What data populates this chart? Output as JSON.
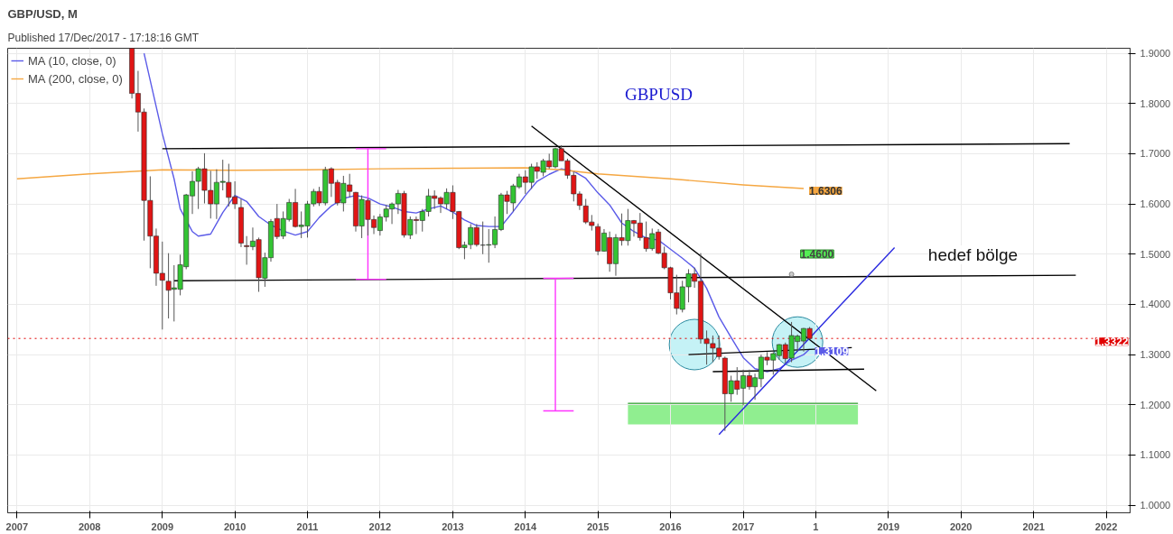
{
  "chart_data": {
    "type": "candlestick",
    "title": "GBP/USD, M",
    "annotations": [
      "Published 17/Dec/2017 - 17:18:16 GMT",
      "GBPUSD",
      {
        "text": "1.4600",
        "x": "2017-09",
        "y": 1.46
      },
      "hedef bölge"
    ],
    "x": [
      "2008-08",
      "2008-09",
      "2008-10",
      "2008-11",
      "2008-12",
      "2009-01",
      "2009-02",
      "2009-03",
      "2009-04",
      "2009-05",
      "2009-06",
      "2009-07",
      "2009-08",
      "2009-09",
      "2009-10",
      "2009-11",
      "2009-12",
      "2010-01",
      "2010-02",
      "2010-03",
      "2010-04",
      "2010-05",
      "2010-06",
      "2010-07",
      "2010-08",
      "2010-09",
      "2010-10",
      "2010-11",
      "2010-12",
      "2011-01",
      "2011-02",
      "2011-03",
      "2011-04",
      "2011-05",
      "2011-06",
      "2011-07",
      "2011-08",
      "2011-09",
      "2011-10",
      "2011-11",
      "2011-12",
      "2012-01",
      "2012-02",
      "2012-03",
      "2012-04",
      "2012-05",
      "2012-06",
      "2012-07",
      "2012-08",
      "2012-09",
      "2012-10",
      "2012-11",
      "2012-12",
      "2013-01",
      "2013-02",
      "2013-03",
      "2013-04",
      "2013-05",
      "2013-06",
      "2013-07",
      "2013-08",
      "2013-09",
      "2013-10",
      "2013-11",
      "2013-12",
      "2014-01",
      "2014-02",
      "2014-03",
      "2014-04",
      "2014-05",
      "2014-06",
      "2014-07",
      "2014-08",
      "2014-09",
      "2014-10",
      "2014-11",
      "2014-12",
      "2015-01",
      "2015-02",
      "2015-03",
      "2015-04",
      "2015-05",
      "2015-06",
      "2015-07",
      "2015-08",
      "2015-09",
      "2015-10",
      "2015-11",
      "2015-12",
      "2016-01",
      "2016-02",
      "2016-03",
      "2016-04",
      "2016-05",
      "2016-06",
      "2016-07",
      "2016-08",
      "2016-09",
      "2016-10",
      "2016-11",
      "2016-12",
      "2017-01",
      "2017-02",
      "2017-03",
      "2017-04",
      "2017-05",
      "2017-06",
      "2017-07",
      "2017-08",
      "2017-09",
      "2017-10",
      "2017-11",
      "2017-12"
    ],
    "ohlc": [
      [
        1.91,
        1.91,
        1.81,
        1.82
      ],
      [
        1.82,
        1.865,
        1.744,
        1.783
      ],
      [
        1.783,
        1.79,
        1.527,
        1.607
      ],
      [
        1.607,
        1.655,
        1.472,
        1.536
      ],
      [
        1.536,
        1.551,
        1.437,
        1.462
      ],
      [
        1.462,
        1.525,
        1.35,
        1.448
      ],
      [
        1.446,
        1.502,
        1.372,
        1.428
      ],
      [
        1.43,
        1.478,
        1.366,
        1.433
      ],
      [
        1.43,
        1.499,
        1.418,
        1.479
      ],
      [
        1.475,
        1.62,
        1.47,
        1.618
      ],
      [
        1.616,
        1.665,
        1.58,
        1.645
      ],
      [
        1.645,
        1.674,
        1.59,
        1.67
      ],
      [
        1.67,
        1.701,
        1.601,
        1.627
      ],
      [
        1.627,
        1.666,
        1.571,
        1.6
      ],
      [
        1.6,
        1.669,
        1.57,
        1.643
      ],
      [
        1.643,
        1.688,
        1.627,
        1.645
      ],
      [
        1.643,
        1.68,
        1.595,
        1.613
      ],
      [
        1.614,
        1.645,
        1.59,
        1.6
      ],
      [
        1.593,
        1.61,
        1.514,
        1.522
      ],
      [
        1.517,
        1.536,
        1.479,
        1.515
      ],
      [
        1.515,
        1.553,
        1.508,
        1.526
      ],
      [
        1.529,
        1.533,
        1.425,
        1.453
      ],
      [
        1.452,
        1.503,
        1.435,
        1.493
      ],
      [
        1.493,
        1.57,
        1.485,
        1.565
      ],
      [
        1.571,
        1.6,
        1.53,
        1.535
      ],
      [
        1.536,
        1.585,
        1.53,
        1.571
      ],
      [
        1.569,
        1.61,
        1.565,
        1.603
      ],
      [
        1.603,
        1.63,
        1.553,
        1.555
      ],
      [
        1.555,
        1.585,
        1.532,
        1.558
      ],
      [
        1.556,
        1.606,
        1.533,
        1.6
      ],
      [
        1.6,
        1.63,
        1.595,
        1.625
      ],
      [
        1.625,
        1.634,
        1.596,
        1.602
      ],
      [
        1.602,
        1.674,
        1.597,
        1.668
      ],
      [
        1.67,
        1.673,
        1.614,
        1.641
      ],
      [
        1.643,
        1.648,
        1.597,
        1.602
      ],
      [
        1.602,
        1.656,
        1.585,
        1.641
      ],
      [
        1.638,
        1.66,
        1.613,
        1.625
      ],
      [
        1.623,
        1.624,
        1.545,
        1.556
      ],
      [
        1.556,
        1.617,
        1.532,
        1.609
      ],
      [
        1.607,
        1.611,
        1.537,
        1.569
      ],
      [
        1.569,
        1.577,
        1.54,
        1.553
      ],
      [
        1.547,
        1.58,
        1.537,
        1.574
      ],
      [
        1.574,
        1.598,
        1.565,
        1.59
      ],
      [
        1.59,
        1.603,
        1.56,
        1.6
      ],
      [
        1.6,
        1.628,
        1.58,
        1.621
      ],
      [
        1.621,
        1.626,
        1.533,
        1.538
      ],
      [
        1.538,
        1.575,
        1.53,
        1.569
      ],
      [
        1.569,
        1.575,
        1.54,
        1.567
      ],
      [
        1.567,
        1.59,
        1.545,
        1.585
      ],
      [
        1.585,
        1.63,
        1.575,
        1.616
      ],
      [
        1.616,
        1.627,
        1.59,
        1.611
      ],
      [
        1.612,
        1.615,
        1.582,
        1.6
      ],
      [
        1.6,
        1.631,
        1.59,
        1.623
      ],
      [
        1.623,
        1.637,
        1.57,
        1.585
      ],
      [
        1.585,
        1.586,
        1.51,
        1.513
      ],
      [
        1.513,
        1.525,
        1.49,
        1.518
      ],
      [
        1.519,
        1.56,
        1.51,
        1.553
      ],
      [
        1.553,
        1.56,
        1.515,
        1.519
      ],
      [
        1.518,
        1.565,
        1.5,
        1.518
      ],
      [
        1.518,
        1.55,
        1.483,
        1.519
      ],
      [
        1.519,
        1.575,
        1.512,
        1.549
      ],
      [
        1.549,
        1.622,
        1.546,
        1.618
      ],
      [
        1.618,
        1.626,
        1.58,
        1.605
      ],
      [
        1.602,
        1.64,
        1.585,
        1.636
      ],
      [
        1.634,
        1.66,
        1.63,
        1.654
      ],
      [
        1.654,
        1.667,
        1.62,
        1.643
      ],
      [
        1.643,
        1.68,
        1.63,
        1.674
      ],
      [
        1.674,
        1.683,
        1.65,
        1.665
      ],
      [
        1.663,
        1.69,
        1.655,
        1.686
      ],
      [
        1.686,
        1.7,
        1.67,
        1.674
      ],
      [
        1.674,
        1.712,
        1.671,
        1.71
      ],
      [
        1.71,
        1.717,
        1.686,
        1.686
      ],
      [
        1.686,
        1.69,
        1.65,
        1.657
      ],
      [
        1.657,
        1.664,
        1.605,
        1.62
      ],
      [
        1.62,
        1.625,
        1.588,
        1.597
      ],
      [
        1.596,
        1.61,
        1.56,
        1.564
      ],
      [
        1.564,
        1.578,
        1.547,
        1.557
      ],
      [
        1.555,
        1.561,
        1.498,
        1.506
      ],
      [
        1.506,
        1.55,
        1.505,
        1.542
      ],
      [
        1.533,
        1.545,
        1.465,
        1.481
      ],
      [
        1.481,
        1.54,
        1.457,
        1.533
      ],
      [
        1.533,
        1.581,
        1.517,
        1.527
      ],
      [
        1.527,
        1.59,
        1.517,
        1.567
      ],
      [
        1.567,
        1.568,
        1.535,
        1.561
      ],
      [
        1.562,
        1.582,
        1.527,
        1.533
      ],
      [
        1.533,
        1.565,
        1.505,
        1.511
      ],
      [
        1.511,
        1.551,
        1.507,
        1.541
      ],
      [
        1.544,
        1.55,
        1.5,
        1.502
      ],
      [
        1.502,
        1.515,
        1.47,
        1.473
      ],
      [
        1.473,
        1.475,
        1.41,
        1.423
      ],
      [
        1.423,
        1.459,
        1.38,
        1.392
      ],
      [
        1.39,
        1.447,
        1.384,
        1.435
      ],
      [
        1.435,
        1.47,
        1.404,
        1.461
      ],
      [
        1.461,
        1.473,
        1.433,
        1.446
      ],
      [
        1.446,
        1.502,
        1.322,
        1.331
      ],
      [
        1.331,
        1.348,
        1.28,
        1.322
      ],
      [
        1.322,
        1.338,
        1.285,
        1.313
      ],
      [
        1.313,
        1.338,
        1.29,
        1.296
      ],
      [
        1.293,
        1.296,
        1.148,
        1.222
      ],
      [
        1.222,
        1.258,
        1.206,
        1.248
      ],
      [
        1.248,
        1.275,
        1.22,
        1.231
      ],
      [
        1.233,
        1.27,
        1.199,
        1.258
      ],
      [
        1.258,
        1.27,
        1.23,
        1.236
      ],
      [
        1.236,
        1.262,
        1.21,
        1.254
      ],
      [
        1.252,
        1.3,
        1.235,
        1.295
      ],
      [
        1.295,
        1.305,
        1.279,
        1.289
      ],
      [
        1.289,
        1.305,
        1.26,
        1.302
      ],
      [
        1.298,
        1.321,
        1.29,
        1.32
      ],
      [
        1.32,
        1.324,
        1.283,
        1.292
      ],
      [
        1.293,
        1.365,
        1.285,
        1.338
      ],
      [
        1.326,
        1.34,
        1.306,
        1.337
      ],
      [
        1.327,
        1.353,
        1.306,
        1.352
      ],
      [
        1.352,
        1.355,
        1.33,
        1.3322
      ]
    ],
    "series": [
      {
        "name": "MA (10, close, 0)",
        "type": "line",
        "color": "#5b5be8",
        "x": [
          "2008-10",
          "2009-01",
          "2009-03",
          "2009-04",
          "2009-06",
          "2009-07",
          "2009-09",
          "2009-11",
          "2010-01",
          "2010-03",
          "2010-05",
          "2010-07",
          "2010-09",
          "2010-11",
          "2011-01",
          "2011-03",
          "2011-05",
          "2011-07",
          "2011-09",
          "2011-11",
          "2012-01",
          "2012-03",
          "2012-05",
          "2012-07",
          "2012-09",
          "2012-11",
          "2013-01",
          "2013-03",
          "2013-05",
          "2013-07",
          "2013-09",
          "2013-11",
          "2014-01",
          "2014-03",
          "2014-05",
          "2014-07",
          "2014-09",
          "2014-11",
          "2015-01",
          "2015-03",
          "2015-05",
          "2015-07",
          "2015-09",
          "2015-11",
          "2016-01",
          "2016-03",
          "2016-05",
          "2016-07",
          "2016-09",
          "2016-11",
          "2017-01",
          "2017-03",
          "2017-05",
          "2017-07",
          "2017-09",
          "2017-11",
          "2017-12"
        ],
        "values": [
          1.9,
          1.74,
          1.65,
          1.59,
          1.545,
          1.536,
          1.54,
          1.583,
          1.617,
          1.605,
          1.575,
          1.558,
          1.546,
          1.538,
          1.545,
          1.573,
          1.596,
          1.611,
          1.617,
          1.612,
          1.6,
          1.594,
          1.585,
          1.582,
          1.59,
          1.596,
          1.584,
          1.568,
          1.557,
          1.555,
          1.555,
          1.585,
          1.617,
          1.645,
          1.659,
          1.67,
          1.665,
          1.651,
          1.622,
          1.598,
          1.562,
          1.545,
          1.532,
          1.528,
          1.51,
          1.492,
          1.472,
          1.432,
          1.375,
          1.334,
          1.294,
          1.272,
          1.266,
          1.272,
          1.289,
          1.3,
          1.3109
        ],
        "value_labels": [
          null,
          null,
          null,
          null,
          null,
          null,
          null,
          null,
          null,
          null,
          null,
          null,
          null,
          null,
          null,
          null,
          null,
          null,
          null,
          null,
          null,
          null,
          null,
          null,
          null,
          null,
          null,
          null,
          null,
          null,
          null,
          null,
          null,
          null,
          null,
          null,
          null,
          null,
          null,
          null,
          null,
          null,
          null,
          null,
          null,
          null,
          null,
          null,
          null,
          null,
          null,
          null,
          null,
          null,
          null,
          null,
          "1.3109"
        ]
      },
      {
        "name": "MA (200, close, 0)",
        "type": "line",
        "color": "#f5a742",
        "x": [
          "2007-01",
          "2008-01",
          "2009-01",
          "2010-01",
          "2011-01",
          "2012-01",
          "2013-01",
          "2014-01",
          "2014-07",
          "2015-01",
          "2016-01",
          "2017-01",
          "2017-11"
        ],
        "values": [
          1.65,
          1.66,
          1.668,
          1.667,
          1.668,
          1.67,
          1.671,
          1.672,
          1.668,
          1.66,
          1.65,
          1.638,
          1.6306
        ],
        "value_labels": [
          null,
          null,
          null,
          null,
          null,
          null,
          null,
          null,
          null,
          null,
          null,
          null,
          "1.6306"
        ]
      },
      {
        "type": "line",
        "color": "#3aa03a",
        "x": [
          "2015-06",
          "2018-08"
        ],
        "values": [
          1.203,
          1.203
        ],
        "lower": [
          1.161,
          1.161
        ],
        "upper": [
          1.203,
          1.203
        ]
      },
      {
        "type": "bubble",
        "color": "#7fe3ea",
        "x": [
          "2016-05",
          "2017-10"
        ],
        "values": [
          1.32,
          1.325
        ],
        "sizes": [
          1,
          1
        ]
      },
      {
        "type": "line",
        "color": "#000000",
        "x": [
          "2009-01",
          "2021-07"
        ],
        "values": [
          1.71,
          1.72
        ]
      },
      {
        "type": "line",
        "color": "#000000",
        "x": [
          "2009-03",
          "2021-08"
        ],
        "values": [
          1.447,
          1.458
        ]
      },
      {
        "type": "line",
        "color": "#000000",
        "x": [
          "2014-02",
          "2018-11"
        ],
        "values": [
          1.755,
          1.228
        ]
      },
      {
        "type": "line",
        "color": "#000000",
        "x": [
          "2016-04",
          "2018-07"
        ],
        "values": [
          1.3,
          1.314
        ]
      },
      {
        "type": "line",
        "color": "#000000",
        "x": [
          "2016-08",
          "2018-09"
        ],
        "values": [
          1.266,
          1.271
        ]
      },
      {
        "type": "line",
        "color": "#2a2ae0",
        "x": [
          "2016-09",
          "2019-02"
        ],
        "values": [
          1.141,
          1.513
        ]
      },
      {
        "type": "line",
        "color": "#ff33ff",
        "x": [
          "2011-09",
          "2012-02"
        ],
        "values": [
          1.71,
          1.71
        ]
      },
      {
        "type": "line",
        "color": "#ff33ff",
        "x": [
          "2011-11",
          "2011-11"
        ],
        "values": [
          1.71,
          1.45
        ]
      },
      {
        "type": "line",
        "color": "#ff33ff",
        "x": [
          "2011-09",
          "2012-02"
        ],
        "values": [
          1.45,
          1.45
        ]
      },
      {
        "type": "line",
        "color": "#ff33ff",
        "x": [
          "2014-04",
          "2014-09"
        ],
        "values": [
          1.452,
          1.452
        ]
      },
      {
        "type": "line",
        "color": "#ff33ff",
        "x": [
          "2014-06",
          "2014-06"
        ],
        "values": [
          1.452,
          1.188
        ]
      },
      {
        "type": "line",
        "color": "#ff33ff",
        "x": [
          "2014-04",
          "2014-09"
        ],
        "values": [
          1.188,
          1.188
        ]
      }
    ],
    "ref_lines": [
      {
        "axis": "y",
        "value": 1.3322,
        "label": "1.3322",
        "color": "#e00000",
        "line_style": "dotted"
      }
    ],
    "xlim": [
      "2006-11-15",
      "2022-05-01"
    ],
    "xticks": [
      "2007",
      "2008",
      "2009",
      "2010",
      "2011",
      "2012",
      "2013",
      "2014",
      "2015",
      "2016",
      "2017",
      {
        "value": "2018",
        "label": "1"
      },
      "2019",
      "2020",
      "2021",
      "2022"
    ],
    "ylim": [
      0.985,
      1.91
    ],
    "yticks": [
      {
        "value": 1.0,
        "label": "1.0000"
      },
      {
        "value": 1.1,
        "label": "1.1000"
      },
      {
        "value": 1.2,
        "label": "1.2000"
      },
      {
        "value": 1.3,
        "label": "1.3000"
      },
      {
        "value": 1.4,
        "label": "1.4000"
      },
      {
        "value": 1.5,
        "label": "1.5000"
      },
      {
        "value": 1.6,
        "label": "1.6000"
      },
      {
        "value": 1.7,
        "label": "1.7000"
      },
      {
        "value": 1.8,
        "label": "1.8000"
      },
      {
        "value": 1.9,
        "label": "1.9000"
      }
    ],
    "grid": true,
    "legend": "top left"
  }
}
